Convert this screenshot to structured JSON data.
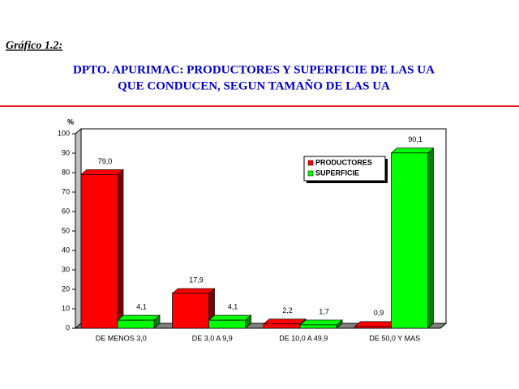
{
  "header": "Gráfico 1.2:",
  "chart_data": {
    "type": "bar",
    "title": [
      "DPTO. APURIMAC: PRODUCTORES Y SUPERFICIE DE LAS UA",
      "QUE CONDUCEN, SEGUN TAMAÑO DE LAS UA"
    ],
    "y_label": "%",
    "categories": [
      "DE MENOS 3,0",
      "DE 3,0 A 9,9",
      "DE 10,0 A 49,9",
      "DE 50,0 Y MAS"
    ],
    "series": [
      {
        "name": "PRODUCTORES",
        "color": "#ff0000",
        "values": [
          79.0,
          17.9,
          2.2,
          0.9
        ],
        "value_labels": [
          "79,0",
          "17,9",
          "2,2",
          "0,9"
        ]
      },
      {
        "name": "SUPERFICIE",
        "color": "#00ff00",
        "values": [
          4.1,
          4.1,
          1.7,
          90.1
        ],
        "value_labels": [
          "4,1",
          "4,1",
          "1,7",
          "90,1"
        ]
      }
    ],
    "ylim": [
      0,
      100
    ],
    "yticks": [
      0,
      10,
      20,
      30,
      40,
      50,
      60,
      70,
      80,
      90,
      100
    ],
    "grid": false,
    "legend": "upper right"
  }
}
